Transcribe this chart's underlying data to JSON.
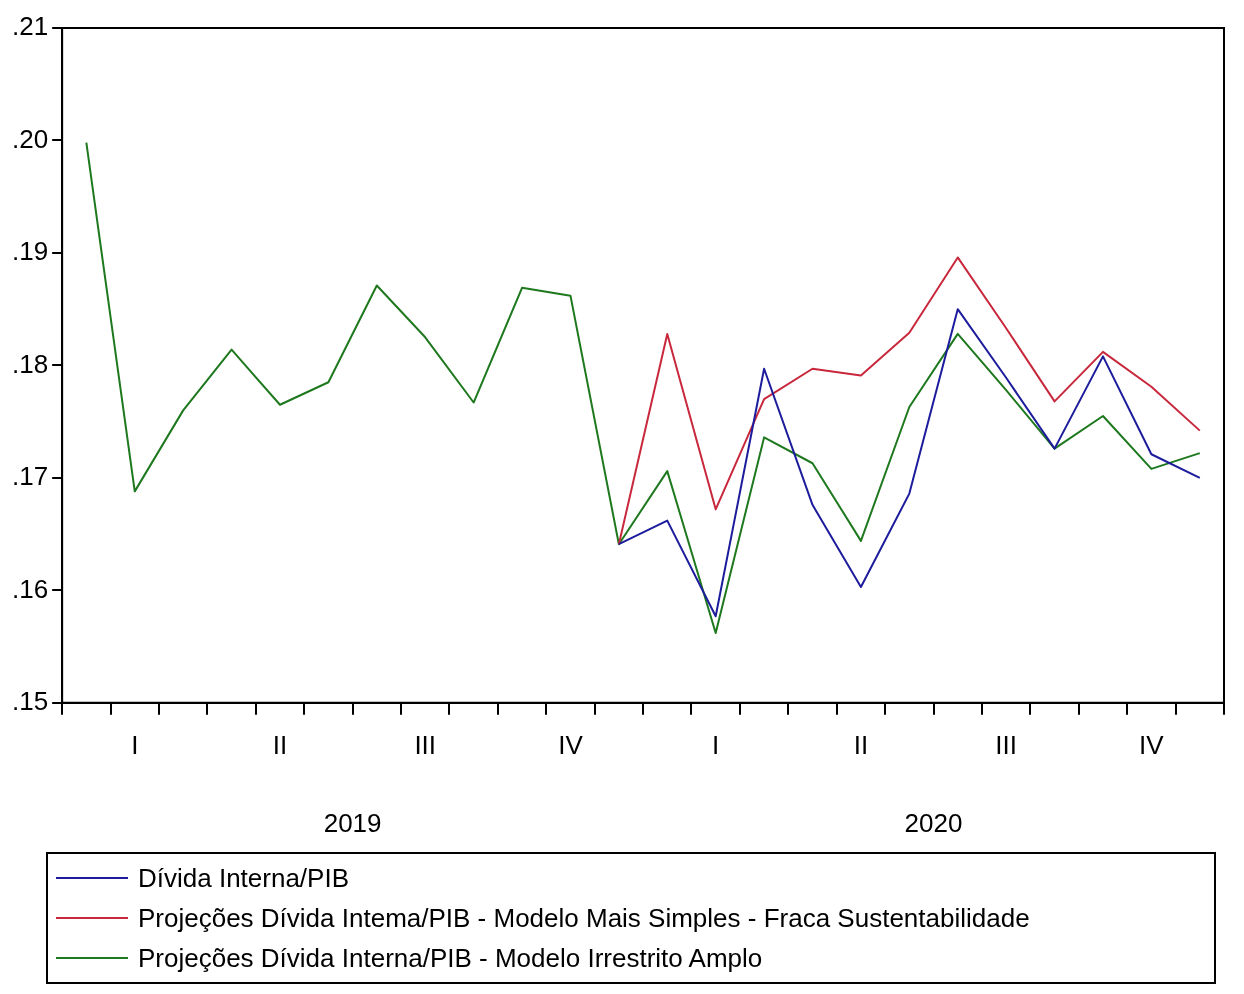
{
  "chart_data": {
    "type": "line",
    "categories": [
      null,
      "I",
      null,
      null,
      "II",
      null,
      null,
      "III",
      null,
      null,
      "IV",
      null,
      null,
      "I",
      null,
      null,
      "II",
      null,
      null,
      "III",
      null,
      null,
      "IV",
      null
    ],
    "annotations": [
      "2019",
      "2020"
    ],
    "series": [
      {
        "name": "Dívida Interna/PIB",
        "color": "#1c1c9c",
        "values": [
          null,
          null,
          null,
          null,
          null,
          null,
          null,
          null,
          null,
          null,
          null,
          0.1641,
          0.1662,
          0.1577,
          0.1797,
          0.1676,
          0.1603,
          0.1686,
          0.185,
          0.1789,
          0.1726,
          0.1808,
          0.1721,
          0.17
        ]
      },
      {
        "name": "Projeções Dívida Intema/PIB - Modelo Mais Simples -  Fraca Sustentabilidade",
        "color": "#c8283c",
        "values": [
          null,
          null,
          null,
          null,
          null,
          null,
          null,
          null,
          null,
          null,
          null,
          0.1641,
          0.1828,
          0.1672,
          0.177,
          0.1797,
          0.1791,
          0.1829,
          0.1896,
          0.1833,
          0.1768,
          0.1812,
          0.1781,
          0.1742
        ]
      },
      {
        "name": "Projeções Dívida Interna/PIB - Modelo Irrestrito Amplo",
        "color": "#1e781e",
        "values": [
          0.1998,
          0.1688,
          0.176,
          0.1814,
          0.1765,
          0.1785,
          0.1871,
          0.1825,
          0.1767,
          0.1869,
          0.1862,
          0.1641,
          0.1706,
          0.1562,
          0.1736,
          0.1713,
          0.1644,
          0.1763,
          0.1828,
          0.1778,
          0.1726,
          0.1755,
          0.1708,
          0.1722
        ]
      }
    ],
    "ylim": [
      0.15,
      0.21
    ],
    "yticks": [
      {
        "value": 0.15,
        "label": ".15"
      },
      {
        "value": 0.16,
        "label": ".16"
      },
      {
        "value": 0.17,
        "label": ".17"
      },
      {
        "value": 0.18,
        "label": ".18"
      },
      {
        "value": 0.19,
        "label": ".19"
      },
      {
        "value": 0.2,
        "label": ".20"
      },
      {
        "value": 0.21,
        "label": ".21"
      }
    ],
    "grid": false,
    "legend": "bottom",
    "marker": "none",
    "line_style": "solid"
  }
}
